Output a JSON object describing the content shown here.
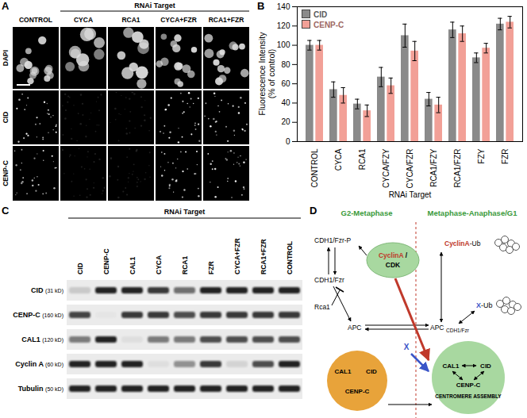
{
  "panel_labels": [
    "A",
    "B",
    "C",
    "D"
  ],
  "panel_a": {
    "header": "RNAi Target",
    "columns": [
      "CONTROL",
      "CYCA",
      "RCA1",
      "CYCA+FZR",
      "RCA1+FZR"
    ],
    "rows": [
      "DAPI",
      "CID",
      "CENP-C"
    ]
  },
  "chart_data": {
    "type": "bar",
    "x_label": "RNAi Target",
    "y_label": "Fluorescence Intensity\n(% of control)",
    "categories": [
      "CONTROL",
      "CYCA",
      "RCA1",
      "CYCA/FZY",
      "CYCA/FZR",
      "RCA1/FZY",
      "RCA1/FZR",
      "FZY",
      "FZR"
    ],
    "series": [
      {
        "name": "CID",
        "color": "#8a8a8a",
        "values": [
          100,
          54,
          39,
          67,
          110,
          44,
          116,
          87,
          122
        ],
        "errors": [
          5,
          8,
          5,
          10,
          12,
          7,
          8,
          5,
          6
        ]
      },
      {
        "name": "CENP-C",
        "color": "#f2a097",
        "values": [
          100,
          48,
          32,
          58,
          94,
          38,
          112,
          97,
          124
        ],
        "errors": [
          5,
          8,
          6,
          8,
          10,
          8,
          8,
          5,
          6
        ]
      }
    ],
    "ylim": [
      0,
      140
    ],
    "yticks": [
      0,
      20,
      40,
      60,
      80,
      100,
      120,
      140
    ],
    "grid": false,
    "legend": "top-left"
  },
  "panel_c": {
    "header": "RNAi Target",
    "lanes": [
      "CID",
      "CENP-C",
      "CAL1",
      "CYCA",
      "RCA1",
      "FZR",
      "CYCA+FZR",
      "RCA1+FZR",
      "CONTROL"
    ],
    "rows": [
      {
        "name": "CID",
        "size": "(31 kD)",
        "bands": [
          0.15,
          0.9,
          0.9,
          0.8,
          0.55,
          0.9,
          0.9,
          0.9,
          0.9
        ]
      },
      {
        "name": "CENP-C",
        "size": "(160 kD)",
        "bands": [
          0.75,
          0.02,
          0.8,
          0.8,
          0.7,
          0.8,
          0.8,
          0.8,
          0.8
        ]
      },
      {
        "name": "CAL1",
        "size": "(120 kD)",
        "bands": [
          0.5,
          0.9,
          0.05,
          0.5,
          0.5,
          0.7,
          0.7,
          0.7,
          0.7
        ]
      },
      {
        "name": "Cyclin A",
        "size": "(60 kD)",
        "bands": [
          0.9,
          0.9,
          0.9,
          0.05,
          0.4,
          0.8,
          0.1,
          0.7,
          0.9
        ]
      },
      {
        "name": "Tubulin",
        "size": "(50 kD)",
        "bands": [
          0.9,
          0.9,
          0.9,
          0.9,
          0.9,
          0.9,
          0.9,
          0.9,
          0.9
        ]
      }
    ]
  },
  "panel_d": {
    "phase_left": "G2-Metaphase",
    "phase_right": "Metaphase-Anaphase/G1",
    "cdh1_p": "CDH1/Fzr-P",
    "cdh1": "CDH1/Fzr",
    "rca1": "Rca1",
    "apc_left": "APC",
    "cyclin_cdk": "CyclinA / CDK",
    "cyclin_ub": "CyclinA-Ub",
    "apc_right": "APC",
    "apc_right_sub": "CDH1/Fzr",
    "x": "X",
    "x_ub": "X-Ub",
    "complex_left": [
      "CAL1",
      "CID",
      "CENP-C"
    ],
    "complex_right": [
      "CAL1",
      "CID",
      "CENP-C"
    ],
    "assembly": "CENTROMERE ASSEMBLY"
  }
}
